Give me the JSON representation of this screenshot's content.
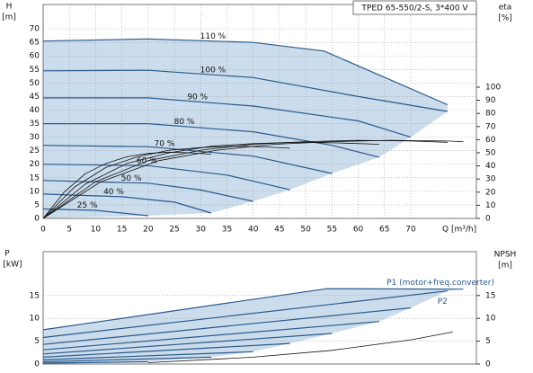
{
  "chart_data": [
    {
      "type": "line",
      "title": "TPED 65-550/2-S, 3*400 V",
      "ylabel": "H",
      "ylabel_unit": "[m]",
      "y2label": "eta",
      "y2label_unit": "[%]",
      "xlabel": "Q [m³/h]",
      "xlim": [
        0,
        82.5
      ],
      "xticks": [
        0,
        5,
        10,
        15,
        20,
        25,
        30,
        35,
        40,
        45,
        50,
        55,
        60,
        65,
        70
      ],
      "ylim": [
        0,
        79
      ],
      "yticks": [
        0,
        5,
        10,
        15,
        20,
        25,
        30,
        35,
        40,
        45,
        50,
        55,
        60,
        65,
        70
      ],
      "y2lim": [
        0,
        163
      ],
      "y2ticks": [
        0,
        10,
        20,
        30,
        40,
        50,
        60,
        70,
        80,
        90,
        100
      ],
      "grid": true,
      "fill_color": "#cbdcec",
      "series": [
        {
          "name": "110 %",
          "color": "#2a5a8c",
          "x": [
            0,
            20,
            40,
            53.5,
            77
          ],
          "values": [
            65.5,
            66.3,
            65,
            61.8,
            42
          ]
        },
        {
          "name": "100 %",
          "color": "#2a5a8c",
          "x": [
            0,
            20,
            40,
            60,
            77
          ],
          "values": [
            54.5,
            54.7,
            52,
            45,
            39.5
          ]
        },
        {
          "name": "90 %",
          "color": "#2a5a8c",
          "x": [
            0,
            20,
            40,
            60,
            70
          ],
          "values": [
            44.5,
            44.5,
            41.5,
            36,
            30
          ]
        },
        {
          "name": "80 %",
          "color": "#2a5a8c",
          "x": [
            0,
            20,
            40,
            55,
            64
          ],
          "values": [
            35,
            35,
            32,
            27,
            22.6
          ]
        },
        {
          "name": "70 %",
          "color": "#2a5a8c",
          "x": [
            0,
            20,
            40,
            55
          ],
          "values": [
            27,
            26.5,
            23,
            16.6
          ]
        },
        {
          "name": "60 %",
          "color": "#2a5a8c",
          "x": [
            0,
            20,
            35,
            47
          ],
          "values": [
            20,
            19.5,
            16,
            10.6
          ]
        },
        {
          "name": "50 %",
          "color": "#2a5a8c",
          "x": [
            0,
            20,
            30,
            40
          ],
          "values": [
            14,
            13,
            10.5,
            6.3
          ]
        },
        {
          "name": "40 %",
          "color": "#2a5a8c",
          "x": [
            0,
            15,
            25,
            32
          ],
          "values": [
            9,
            8,
            6,
            2
          ]
        },
        {
          "name": "25 %",
          "color": "#2a5a8c",
          "x": [
            0,
            10,
            20
          ],
          "values": [
            3.5,
            3,
            1
          ]
        },
        {
          "axis": "y2",
          "color": "#111111",
          "x": [
            0,
            11,
            22,
            33,
            44,
            55,
            66,
            77,
            80
          ],
          "values": [
            0,
            28,
            44,
            52,
            56.5,
            58.5,
            59.5,
            59,
            58.5
          ]
        },
        {
          "axis": "y2",
          "color": "#111111",
          "x": [
            0,
            10,
            20,
            30,
            40,
            50,
            60,
            70,
            77
          ],
          "values": [
            0,
            28,
            44,
            52,
            56.5,
            58.5,
            59.5,
            59,
            58
          ]
        },
        {
          "axis": "y2",
          "color": "#111111",
          "x": [
            0,
            8,
            16,
            24,
            32,
            40,
            48,
            56,
            64
          ],
          "values": [
            0,
            26,
            42,
            50,
            55,
            57,
            58,
            57.5,
            56.5
          ]
        },
        {
          "axis": "y2",
          "color": "#111111",
          "x": [
            0,
            6,
            12,
            18,
            24,
            30,
            36,
            42,
            47
          ],
          "values": [
            0,
            24,
            39,
            47,
            52,
            54,
            55,
            54.5,
            53.5
          ]
        },
        {
          "axis": "y2",
          "color": "#111111",
          "x": [
            0,
            4,
            8,
            12,
            16,
            20,
            24,
            28,
            32
          ],
          "values": [
            0,
            20,
            34,
            42,
            47,
            49.5,
            50.5,
            50,
            49
          ]
        }
      ]
    },
    {
      "type": "line",
      "ylabel": "P",
      "ylabel_unit": "[kW]",
      "y2label": "NPSH",
      "y2label_unit": "[m]",
      "xlim": [
        0,
        82.5
      ],
      "ylim": [
        0,
        24.6
      ],
      "yticks": [
        0,
        5,
        10,
        15
      ],
      "y2lim": [
        0,
        24.6
      ],
      "y2ticks": [
        0,
        5,
        10,
        15
      ],
      "grid": true,
      "fill_color": "#cbdcec",
      "annotations": [
        "P1 (motor+freq.converter)",
        "P2"
      ],
      "series": [
        {
          "color": "#2a5a8c",
          "x": [
            0,
            54,
            80
          ],
          "values": [
            7.5,
            16.5,
            16.4
          ]
        },
        {
          "color": "#2a5a8c",
          "x": [
            0,
            77
          ],
          "values": [
            5.8,
            16
          ]
        },
        {
          "color": "#2a5a8c",
          "x": [
            0,
            70
          ],
          "values": [
            4.3,
            12.3
          ]
        },
        {
          "color": "#2a5a8c",
          "x": [
            0,
            64
          ],
          "values": [
            3.1,
            9.3
          ]
        },
        {
          "color": "#2a5a8c",
          "x": [
            0,
            55
          ],
          "values": [
            2.2,
            6.7
          ]
        },
        {
          "color": "#2a5a8c",
          "x": [
            0,
            47
          ],
          "values": [
            1.5,
            4.5
          ]
        },
        {
          "color": "#2a5a8c",
          "x": [
            0,
            40
          ],
          "values": [
            0.9,
            2.7
          ]
        },
        {
          "color": "#2a5a8c",
          "x": [
            0,
            32
          ],
          "values": [
            0.5,
            1.5
          ]
        },
        {
          "color": "#2a5a8c",
          "x": [
            0,
            20
          ],
          "values": [
            0.2,
            0.5
          ]
        },
        {
          "axis": "y2",
          "color": "#111111",
          "x": [
            20,
            40,
            55,
            70,
            78
          ],
          "values": [
            0.3,
            1.5,
            3,
            5.3,
            7
          ]
        }
      ]
    }
  ]
}
